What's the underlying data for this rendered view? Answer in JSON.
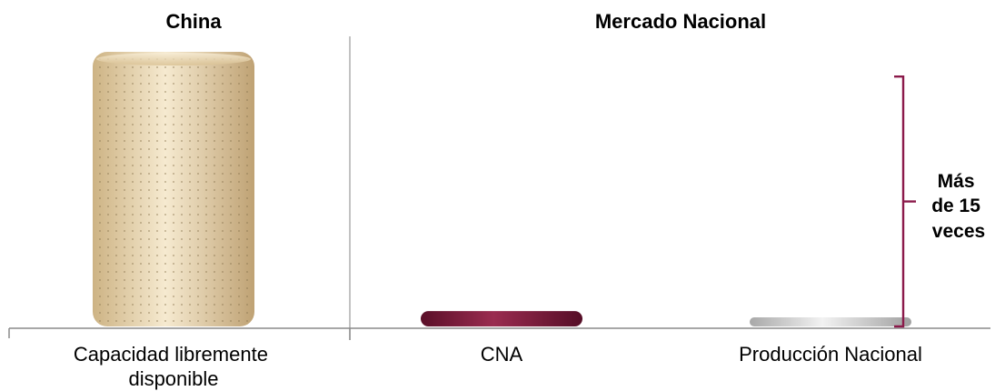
{
  "chart_data": {
    "type": "bar",
    "sections": [
      {
        "title": "China",
        "category_indices": [
          0
        ]
      },
      {
        "title": "Mercado Nacional",
        "category_indices": [
          1,
          2
        ]
      }
    ],
    "categories": [
      "Capacidad libremente disponible",
      "CNA",
      "Producción Nacional"
    ],
    "category_label_lines": [
      [
        "Capacidad libremente",
        "disponible"
      ],
      [
        "CNA"
      ],
      [
        "Producción Nacional"
      ]
    ],
    "values": [
      100,
      5.6,
      3.3
    ],
    "bar_colors": [
      "#e8d3a8",
      "#7a1a3a",
      "#c8c8c8"
    ],
    "ylim": [
      0,
      100
    ],
    "grid": false,
    "legend": "none",
    "annotation": {
      "lines": [
        "Más",
        "de 15",
        "veces"
      ],
      "bracket_color": "#8b1a4a",
      "bracket_from_value": 0,
      "bracket_to_value": 91
    }
  }
}
